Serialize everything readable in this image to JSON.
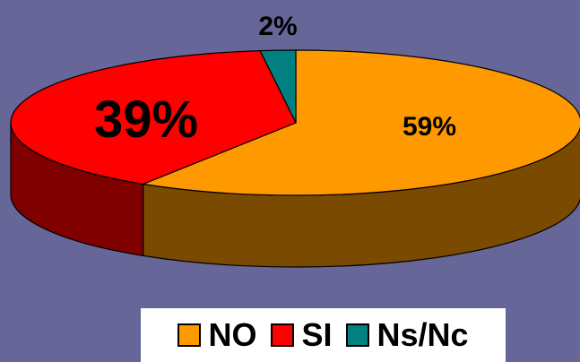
{
  "chart_data": {
    "type": "pie",
    "style": "3d",
    "categories": [
      "NO",
      "SI",
      "Ns/Nc"
    ],
    "values": [
      59,
      39,
      2
    ],
    "data_labels": [
      "59%",
      "39%",
      "2%"
    ],
    "colors": [
      "#ff9900",
      "#ff0000",
      "#008080"
    ],
    "side_colors": [
      "#7a4a00",
      "#800000",
      "#004040"
    ],
    "legend_position": "bottom"
  },
  "legend": {
    "items": [
      {
        "label": "NO",
        "color": "#ff9900"
      },
      {
        "label": "SI",
        "color": "#ff0000"
      },
      {
        "label": "Ns/Nc",
        "color": "#008080"
      }
    ]
  },
  "background_color": "#666699"
}
